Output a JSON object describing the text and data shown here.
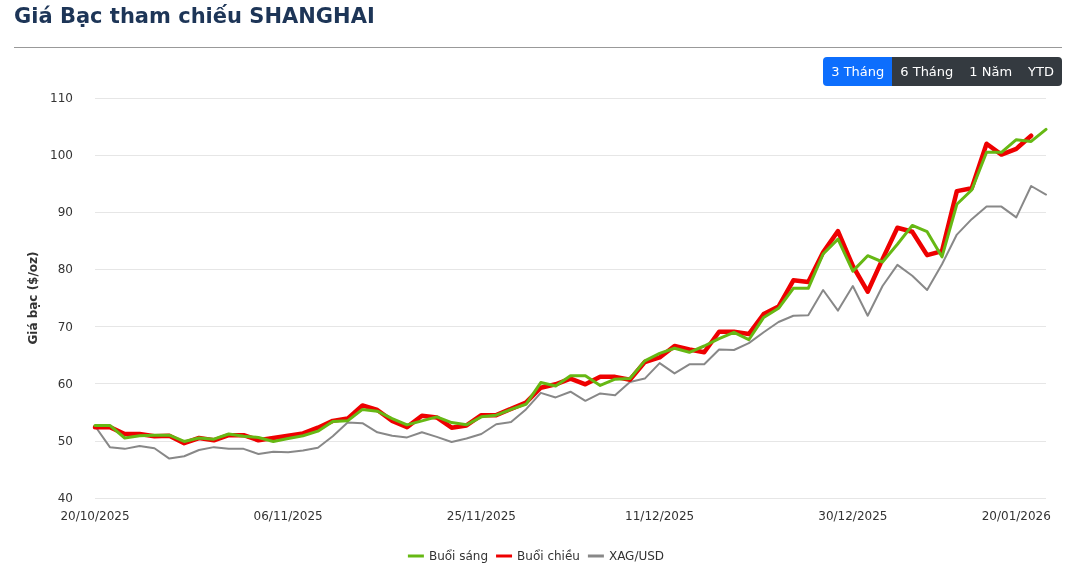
{
  "chart_data": {
    "type": "line",
    "title": "Giá Bạc tham chiếu SHANGHAI",
    "ylabel": "Giá bạc ($/oz)",
    "annotations": [
      "3 Tháng",
      "6 Tháng",
      "1 Năm",
      "YTD"
    ],
    "categories": [
      "20/10/2025",
      null,
      null,
      null,
      null,
      null,
      null,
      null,
      null,
      null,
      null,
      null,
      null,
      "06/11/2025",
      null,
      null,
      null,
      null,
      null,
      null,
      null,
      null,
      null,
      null,
      null,
      null,
      "25/11/2025",
      null,
      null,
      null,
      null,
      null,
      null,
      null,
      null,
      null,
      null,
      null,
      "11/12/2025",
      null,
      null,
      null,
      null,
      null,
      null,
      null,
      null,
      null,
      null,
      null,
      null,
      "30/12/2025",
      null,
      null,
      null,
      null,
      null,
      null,
      null,
      null,
      null,
      null,
      "20/01/2026",
      null,
      null
    ],
    "series": [
      {
        "name": "Buổi sáng",
        "color": "#66b814",
        "values": [
          52.7,
          52.7,
          50.5,
          50.9,
          51.0,
          51.0,
          49.9,
          50.5,
          50.3,
          51.2,
          50.8,
          50.6,
          49.9,
          50.4,
          50.9,
          51.7,
          53.4,
          53.5,
          55.5,
          55.2,
          53.9,
          52.8,
          53.5,
          54.2,
          53.2,
          52.8,
          54.2,
          54.5,
          55.5,
          56.4,
          60.2,
          59.6,
          61.4,
          61.4,
          59.7,
          60.8,
          60.9,
          64.0,
          65.3,
          66.2,
          65.5,
          66.6,
          67.9,
          69.0,
          67.7,
          71.6,
          73.2,
          76.7,
          76.7,
          82.7,
          85.3,
          79.7,
          82.4,
          81.3,
          84.4,
          87.7,
          86.6,
          82.2,
          91.4,
          93.9,
          100.5,
          100.5,
          102.7,
          102.4,
          104.5
        ]
      },
      {
        "name": "Buổi chiều",
        "color": "#ee0000",
        "values": [
          52.4,
          52.4,
          51.2,
          51.2,
          50.8,
          50.9,
          49.6,
          50.5,
          50.1,
          51.0,
          51.0,
          50.1,
          50.5,
          50.9,
          51.3,
          52.3,
          53.5,
          53.9,
          56.2,
          55.4,
          53.5,
          52.4,
          54.4,
          54.1,
          52.3,
          52.7,
          54.5,
          54.5,
          55.6,
          56.7,
          59.3,
          59.9,
          60.9,
          59.9,
          61.2,
          61.2,
          60.7,
          63.8,
          64.6,
          66.6,
          66.0,
          65.5,
          69.1,
          69.1,
          68.7,
          72.2,
          73.5,
          78.1,
          77.8,
          83.0,
          86.7,
          80.6,
          76.1,
          81.8,
          87.3,
          86.6,
          82.5,
          83.2,
          93.7,
          94.2,
          102.0,
          100.1,
          101.1,
          103.4,
          null
        ]
      },
      {
        "name": "XAG/USD",
        "color": "#888888",
        "values": [
          52.6,
          48.9,
          48.6,
          49.1,
          48.7,
          46.9,
          47.3,
          48.4,
          48.9,
          48.6,
          48.6,
          47.7,
          48.1,
          48.0,
          48.3,
          48.8,
          50.8,
          53.2,
          53.1,
          51.5,
          50.9,
          50.6,
          51.5,
          50.7,
          49.8,
          50.4,
          51.2,
          52.9,
          53.3,
          55.5,
          58.4,
          57.6,
          58.6,
          57.0,
          58.3,
          58.0,
          60.3,
          60.9,
          63.6,
          61.8,
          63.4,
          63.4,
          66.0,
          65.9,
          67.1,
          69.0,
          70.8,
          71.9,
          72.0,
          76.4,
          72.8,
          77.1,
          71.9,
          77.1,
          80.8,
          78.9,
          76.4,
          80.9,
          86.1,
          88.8,
          91.0,
          91.0,
          89.1,
          94.6,
          93.1
        ]
      }
    ],
    "ylim": [
      40,
      110
    ],
    "yticks": [
      40,
      50,
      60,
      70,
      80,
      90,
      100,
      110
    ],
    "grid": "y",
    "legend": "bottom",
    "marker": "none",
    "line_style": "solid"
  }
}
